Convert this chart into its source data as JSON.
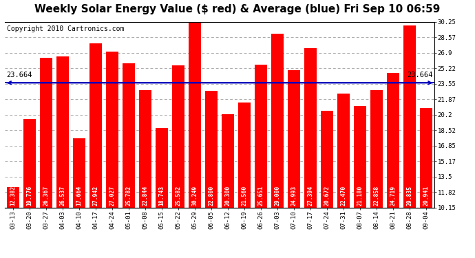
{
  "title": "Weekly Solar Energy Value ($ red) & Average (blue) Fri Sep 10 06:59",
  "copyright": "Copyright 2010 Cartronics.com",
  "average": 23.664,
  "bar_color": "#ff0000",
  "avg_line_color": "#0000bb",
  "background_color": "#ffffff",
  "plot_bg_color": "#ffffff",
  "categories": [
    "03-13",
    "03-20",
    "03-27",
    "04-03",
    "04-10",
    "04-17",
    "04-24",
    "05-01",
    "05-08",
    "05-15",
    "05-22",
    "05-29",
    "06-05",
    "06-12",
    "06-19",
    "06-26",
    "07-03",
    "07-10",
    "07-17",
    "07-24",
    "07-31",
    "08-07",
    "08-14",
    "08-21",
    "08-28",
    "09-04"
  ],
  "values": [
    12.382,
    19.776,
    26.367,
    26.537,
    17.664,
    27.942,
    27.027,
    25.782,
    22.844,
    18.743,
    25.582,
    30.249,
    22.8,
    20.3,
    21.56,
    25.651,
    29.0,
    24.993,
    27.394,
    20.672,
    22.47,
    21.18,
    22.858,
    24.719,
    29.835,
    20.941
  ],
  "ylim_min": 10.15,
  "ylim_max": 30.25,
  "yticks": [
    10.15,
    11.82,
    13.5,
    15.17,
    16.85,
    18.52,
    20.2,
    21.87,
    23.55,
    25.22,
    26.9,
    28.57,
    30.25
  ],
  "title_fontsize": 11,
  "copyright_fontsize": 7,
  "tick_label_fontsize": 6.5,
  "bar_value_fontsize": 5.8,
  "avg_label_fontsize": 7.5
}
